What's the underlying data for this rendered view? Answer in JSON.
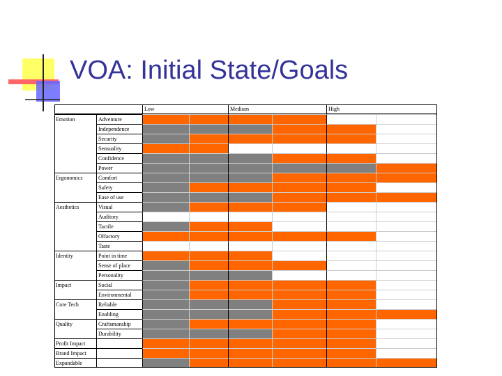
{
  "slide": {
    "title": "VOA: Initial State/Goals"
  },
  "table": {
    "headers": [
      "Low",
      "Medium",
      "High"
    ],
    "colors": {
      "g": "#808080",
      "o": "#ff6600",
      "w": "#ffffff"
    },
    "rows": [
      {
        "category": "Emotion",
        "attribute": "Adventure",
        "cells": [
          "o",
          "o",
          "o",
          "o",
          "w",
          "w"
        ]
      },
      {
        "category": null,
        "attribute": "Independence",
        "cells": [
          "g",
          "g",
          "g",
          "o",
          "o",
          "w"
        ]
      },
      {
        "category": null,
        "attribute": "Security",
        "cells": [
          "g",
          "o",
          "o",
          "o",
          "o",
          "w"
        ]
      },
      {
        "category": null,
        "attribute": "Sensuality",
        "cells": [
          "o",
          "o",
          "w",
          "w",
          "w",
          "w"
        ]
      },
      {
        "category": null,
        "attribute": "Confidence",
        "cells": [
          "g",
          "g",
          "g",
          "o",
          "o",
          "w"
        ]
      },
      {
        "category": null,
        "attribute": "Power",
        "cells": [
          "g",
          "g",
          "g",
          "g",
          "g",
          "o"
        ]
      },
      {
        "category": "Ergonomics",
        "attribute": "Comfort",
        "cells": [
          "g",
          "g",
          "g",
          "o",
          "o",
          "o"
        ]
      },
      {
        "category": null,
        "attribute": "Safety",
        "cells": [
          "g",
          "o",
          "o",
          "o",
          "o",
          "w"
        ]
      },
      {
        "category": null,
        "attribute": "Ease of use",
        "cells": [
          "g",
          "g",
          "g",
          "o",
          "o",
          "o"
        ]
      },
      {
        "category": "Aesthetics",
        "attribute": "Visual",
        "cells": [
          "g",
          "o",
          "o",
          "o",
          "w",
          "w"
        ]
      },
      {
        "category": null,
        "attribute": "Auditory",
        "cells": [
          "w",
          "w",
          "w",
          "w",
          "w",
          "w"
        ]
      },
      {
        "category": null,
        "attribute": "Tactile",
        "cells": [
          "g",
          "o",
          "o",
          "w",
          "w",
          "w"
        ]
      },
      {
        "category": null,
        "attribute": "Olfactory",
        "cells": [
          "o",
          "o",
          "o",
          "o",
          "o",
          "w"
        ]
      },
      {
        "category": null,
        "attribute": "Taste",
        "cells": [
          "w",
          "w",
          "w",
          "w",
          "w",
          "w"
        ]
      },
      {
        "category": "Identity",
        "attribute": "Point in time",
        "cells": [
          "o",
          "o",
          "o",
          "w",
          "w",
          "w"
        ]
      },
      {
        "category": null,
        "attribute": "Sense of place",
        "cells": [
          "g",
          "o",
          "o",
          "o",
          "w",
          "w"
        ]
      },
      {
        "category": null,
        "attribute": "Personality",
        "cells": [
          "g",
          "g",
          "g",
          "w",
          "w",
          "w"
        ]
      },
      {
        "category": "Impact",
        "attribute": "Social",
        "cells": [
          "g",
          "o",
          "o",
          "o",
          "o",
          "w"
        ]
      },
      {
        "category": null,
        "attribute": "Environmental",
        "cells": [
          "g",
          "o",
          "o",
          "o",
          "o",
          "w"
        ]
      },
      {
        "category": "Core Tech",
        "attribute": "Reliable",
        "cells": [
          "g",
          "g",
          "g",
          "o",
          "o",
          "w"
        ]
      },
      {
        "category": null,
        "attribute": "Enabling",
        "cells": [
          "g",
          "g",
          "g",
          "o",
          "o",
          "o"
        ]
      },
      {
        "category": "Quality",
        "attribute": "Craftsmanship",
        "cells": [
          "g",
          "o",
          "o",
          "o",
          "o",
          "w"
        ]
      },
      {
        "category": null,
        "attribute": "Durability",
        "cells": [
          "g",
          "g",
          "g",
          "o",
          "o",
          "w"
        ]
      },
      {
        "category": "Profit Impact",
        "attribute": null,
        "cells": [
          "o",
          "o",
          "o",
          "o",
          "o",
          "w"
        ]
      },
      {
        "category": "Brand Impact",
        "attribute": null,
        "cells": [
          "o",
          "o",
          "o",
          "o",
          "o",
          "w"
        ]
      },
      {
        "category": "Expandable",
        "attribute": null,
        "cells": [
          "g",
          "o",
          "o",
          "o",
          "o",
          "o"
        ]
      }
    ]
  }
}
